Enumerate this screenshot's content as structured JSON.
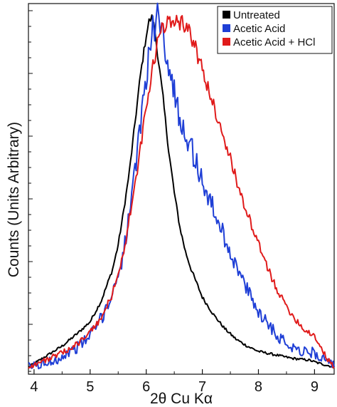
{
  "chart_data": {
    "type": "line",
    "title": "",
    "xlabel": "2θ Cu Kα",
    "ylabel": "Counts (Units Arbitrary)",
    "xlim": [
      3.9,
      9.35
    ],
    "ylim": [
      0,
      1
    ],
    "x_ticks": [
      "4",
      "5",
      "6",
      "7",
      "8",
      "9"
    ],
    "grid": false,
    "legend_position": "top-right",
    "series": [
      {
        "name": "Untreated",
        "color": "#000000",
        "x": [
          3.9,
          4.2,
          4.5,
          4.8,
          5.0,
          5.2,
          5.4,
          5.5,
          5.6,
          5.7,
          5.8,
          5.9,
          6.0,
          6.05,
          6.1,
          6.15,
          6.2,
          6.3,
          6.4,
          6.5,
          6.6,
          6.7,
          6.8,
          6.9,
          7.0,
          7.2,
          7.4,
          7.6,
          7.8,
          8.0,
          8.3,
          8.6,
          8.9,
          9.1,
          9.35
        ],
        "y": [
          0.0,
          0.03,
          0.06,
          0.1,
          0.13,
          0.19,
          0.28,
          0.35,
          0.45,
          0.56,
          0.7,
          0.84,
          0.95,
          0.99,
          1.0,
          0.97,
          0.9,
          0.77,
          0.62,
          0.5,
          0.4,
          0.33,
          0.28,
          0.24,
          0.2,
          0.15,
          0.11,
          0.08,
          0.06,
          0.045,
          0.035,
          0.025,
          0.02,
          0.01,
          0.0
        ]
      },
      {
        "name": "Acetic Acid",
        "color": "#1f3fd6",
        "x": [
          3.9,
          4.2,
          4.5,
          4.8,
          5.0,
          5.2,
          5.4,
          5.6,
          5.8,
          5.9,
          6.0,
          6.1,
          6.15,
          6.2,
          6.25,
          6.3,
          6.4,
          6.5,
          6.6,
          6.7,
          6.8,
          6.9,
          7.0,
          7.2,
          7.4,
          7.6,
          7.8,
          8.0,
          8.2,
          8.4,
          8.6,
          8.8,
          9.0,
          9.2,
          9.35
        ],
        "y": [
          0.0,
          0.01,
          0.03,
          0.06,
          0.09,
          0.14,
          0.21,
          0.33,
          0.55,
          0.7,
          0.84,
          0.95,
          0.98,
          1.0,
          0.99,
          0.95,
          0.87,
          0.78,
          0.72,
          0.67,
          0.63,
          0.58,
          0.53,
          0.45,
          0.37,
          0.29,
          0.22,
          0.16,
          0.12,
          0.08,
          0.06,
          0.045,
          0.04,
          0.02,
          0.0
        ]
      },
      {
        "name": "Acetic Acid + HCl",
        "color": "#e01b1b",
        "x": [
          3.9,
          4.2,
          4.5,
          4.8,
          5.0,
          5.2,
          5.4,
          5.6,
          5.8,
          6.0,
          6.1,
          6.2,
          6.3,
          6.4,
          6.5,
          6.6,
          6.7,
          6.8,
          6.9,
          7.0,
          7.2,
          7.4,
          7.6,
          7.8,
          8.0,
          8.2,
          8.4,
          8.6,
          8.8,
          8.9,
          9.0,
          9.1,
          9.2,
          9.35
        ],
        "y": [
          0.0,
          0.02,
          0.04,
          0.07,
          0.1,
          0.14,
          0.21,
          0.33,
          0.52,
          0.74,
          0.84,
          0.93,
          0.97,
          0.99,
          1.0,
          0.99,
          0.98,
          0.95,
          0.9,
          0.85,
          0.75,
          0.65,
          0.54,
          0.44,
          0.35,
          0.27,
          0.2,
          0.15,
          0.11,
          0.1,
          0.09,
          0.06,
          0.03,
          0.0
        ]
      }
    ]
  }
}
